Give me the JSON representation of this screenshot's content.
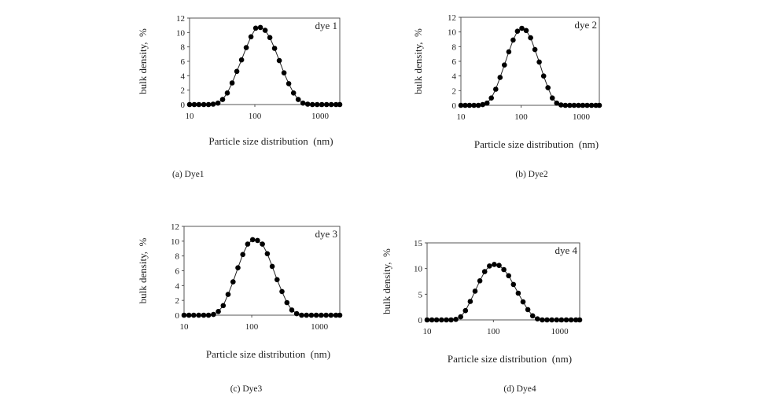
{
  "figure": {
    "colors": {
      "ink": "#222222",
      "marker": "#000000",
      "frame": "#444444"
    }
  },
  "chart_data": [
    {
      "type": "scatter",
      "series_label": "dye 1",
      "caption": "(a)   Dye1",
      "xlabel": "Particle size distribution  (nm)",
      "ylabel": "bulk density,  %",
      "xscale": "log",
      "xlim": [
        10,
        2000
      ],
      "xticks": [
        10,
        100,
        1000
      ],
      "ylim": [
        0,
        12
      ],
      "yticks": [
        0,
        2,
        4,
        6,
        8,
        10,
        12
      ],
      "series": [
        {
          "name": "dye 1",
          "x": [
            10,
            11.8,
            13.9,
            16.5,
            19.5,
            23,
            27.2,
            32.1,
            37.9,
            44.8,
            52.9,
            62.5,
            73.8,
            87.2,
            103,
            121.7,
            143.8,
            169.9,
            200.7,
            237.1,
            280.1,
            330.9,
            391,
            461.9,
            545.6,
            644.6,
            761.6,
            899.7,
            1062.9,
            1255.8,
            1483.6,
            1752.7,
            2000
          ],
          "y": [
            0,
            0,
            0,
            0,
            0,
            0.05,
            0.2,
            0.7,
            1.6,
            3.0,
            4.6,
            6.2,
            7.9,
            9.4,
            10.6,
            10.7,
            10.3,
            9.3,
            7.8,
            6.1,
            4.4,
            2.9,
            1.6,
            0.7,
            0.2,
            0.05,
            0,
            0,
            0,
            0,
            0,
            0,
            0
          ]
        }
      ]
    },
    {
      "type": "scatter",
      "series_label": "dye 2",
      "caption": "(b) Dye2",
      "xlabel": "Particle size distribution  (nm)",
      "ylabel": "bulk density,  %",
      "xscale": "log",
      "xlim": [
        10,
        2000
      ],
      "xticks": [
        10,
        100,
        1000
      ],
      "ylim": [
        0,
        12
      ],
      "yticks": [
        0,
        2,
        4,
        6,
        8,
        10,
        12
      ],
      "series": [
        {
          "name": "dye 2",
          "x": [
            10,
            11.8,
            13.9,
            16.5,
            19.5,
            23,
            27.2,
            32.1,
            37.9,
            44.8,
            52.9,
            62.5,
            73.8,
            87.2,
            103,
            121.7,
            143.8,
            169.9,
            200.7,
            237.1,
            280.1,
            330.9,
            391,
            461.9,
            545.6,
            644.6,
            761.6,
            899.7,
            1062.9,
            1255.8,
            1483.6,
            1752.7,
            2000
          ],
          "y": [
            0,
            0,
            0,
            0,
            0,
            0.1,
            0.3,
            1.0,
            2.2,
            3.8,
            5.5,
            7.3,
            8.9,
            10.1,
            10.5,
            10.2,
            9.2,
            7.6,
            5.9,
            4.0,
            2.4,
            1.0,
            0.3,
            0.05,
            0,
            0,
            0,
            0,
            0,
            0,
            0,
            0,
            0
          ]
        }
      ]
    },
    {
      "type": "scatter",
      "series_label": "dye 3",
      "caption": "(c) Dye3",
      "xlabel": "Particle size distribution  (nm)",
      "ylabel": "bulk density,  %",
      "xscale": "log",
      "xlim": [
        10,
        2000
      ],
      "xticks": [
        10,
        100,
        1000
      ],
      "ylim": [
        0,
        12
      ],
      "yticks": [
        0,
        2,
        4,
        6,
        8,
        10,
        12
      ],
      "series": [
        {
          "name": "dye 3",
          "x": [
            10,
            11.8,
            13.9,
            16.5,
            19.5,
            23,
            27.2,
            32.1,
            37.9,
            44.8,
            52.9,
            62.5,
            73.8,
            87.2,
            103,
            121.7,
            143.8,
            169.9,
            200.7,
            237.1,
            280.1,
            330.9,
            391,
            461.9,
            545.6,
            644.6,
            761.6,
            899.7,
            1062.9,
            1255.8,
            1483.6,
            1752.7,
            2000
          ],
          "y": [
            0,
            0,
            0,
            0,
            0,
            0,
            0.1,
            0.5,
            1.3,
            2.8,
            4.5,
            6.4,
            8.2,
            9.6,
            10.2,
            10.1,
            9.6,
            8.3,
            6.6,
            4.8,
            3.2,
            1.7,
            0.7,
            0.2,
            0,
            0,
            0,
            0,
            0,
            0,
            0,
            0,
            0
          ]
        }
      ]
    },
    {
      "type": "scatter",
      "series_label": "dye 4",
      "caption": "(d) Dye4",
      "xlabel": "Particle size distribution  (nm)",
      "ylabel": "bulk density,  %",
      "xscale": "log",
      "xlim": [
        10,
        2000
      ],
      "xticks": [
        10,
        100,
        1000
      ],
      "ylim": [
        0,
        15
      ],
      "yticks": [
        0,
        5,
        10,
        15
      ],
      "series": [
        {
          "name": "dye 4",
          "x": [
            10,
            11.8,
            13.9,
            16.5,
            19.5,
            23,
            27.2,
            32.1,
            37.9,
            44.8,
            52.9,
            62.5,
            73.8,
            87.2,
            103,
            121.7,
            143.8,
            169.9,
            200.7,
            237.1,
            280.1,
            330.9,
            391,
            461.9,
            545.6,
            644.6,
            761.6,
            899.7,
            1062.9,
            1255.8,
            1483.6,
            1752.7,
            2000
          ],
          "y": [
            0,
            0,
            0,
            0,
            0,
            0,
            0.1,
            0.6,
            1.8,
            3.6,
            5.6,
            7.6,
            9.4,
            10.5,
            10.8,
            10.6,
            9.8,
            8.6,
            6.9,
            5.2,
            3.5,
            2.0,
            0.8,
            0.2,
            0,
            0,
            0,
            0,
            0,
            0,
            0,
            0,
            0
          ]
        }
      ]
    }
  ]
}
